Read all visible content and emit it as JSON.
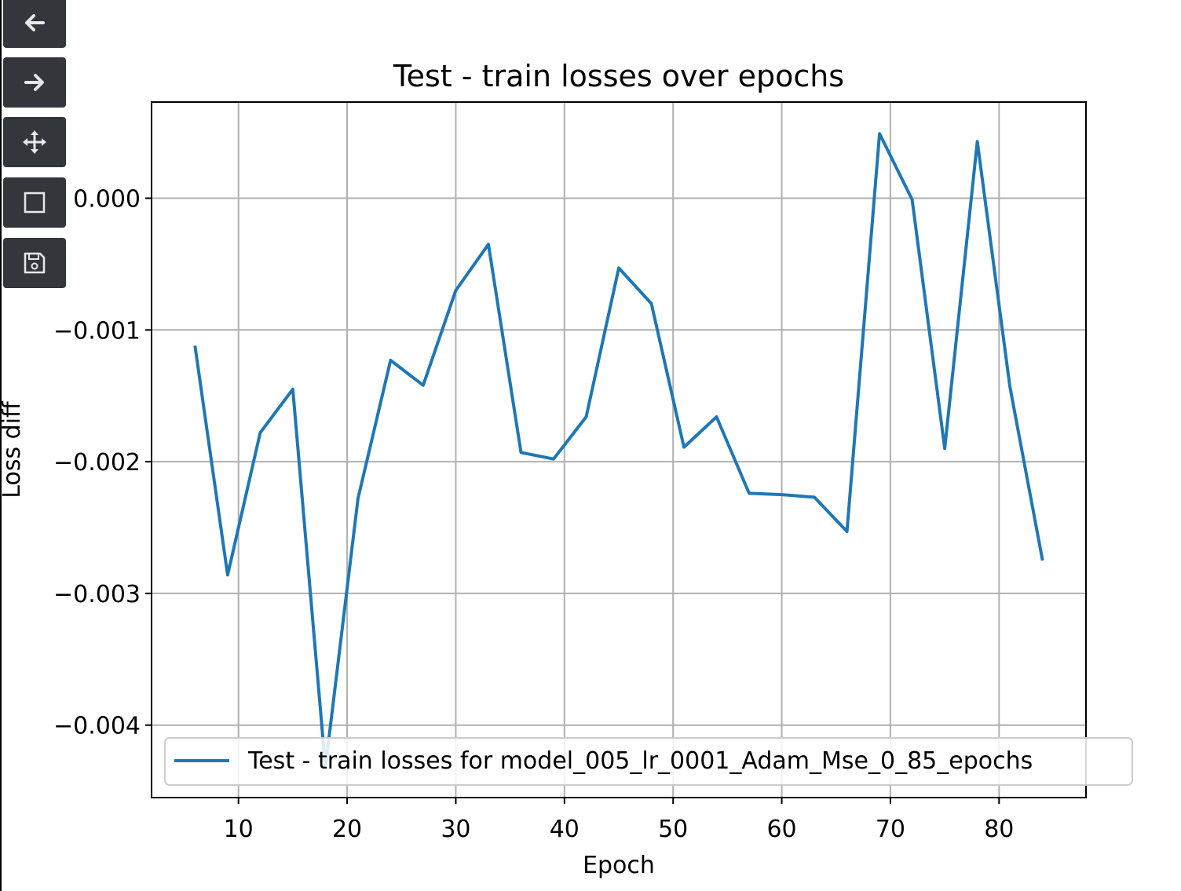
{
  "toolbar": {
    "buttons": [
      {
        "name": "back",
        "icon": "arrow-left-icon"
      },
      {
        "name": "forward",
        "icon": "arrow-right-icon"
      },
      {
        "name": "pan",
        "icon": "move-icon"
      },
      {
        "name": "zoom",
        "icon": "zoom-rect-icon"
      },
      {
        "name": "save",
        "icon": "floppy-disk-icon"
      }
    ]
  },
  "chart_data": {
    "type": "line",
    "title": "Test - train losses over epochs",
    "xlabel": "Epoch",
    "ylabel": "Loss diff",
    "xlim": [
      2,
      88
    ],
    "ylim": [
      -0.00455,
      0.00073
    ],
    "xticks": [
      10,
      20,
      30,
      40,
      50,
      60,
      70,
      80
    ],
    "xtick_labels": [
      "10",
      "20",
      "30",
      "40",
      "50",
      "60",
      "70",
      "80"
    ],
    "yticks": [
      0.0,
      -0.001,
      -0.002,
      -0.003,
      -0.004
    ],
    "ytick_labels": [
      "0.000",
      "−0.001",
      "−0.002",
      "−0.003",
      "−0.004"
    ],
    "grid": true,
    "legend_position": "lower-right",
    "series": [
      {
        "name": "Test - train losses for model_005_lr_0001_Adam_Mse_0_85_epochs",
        "color": "#1f77b4",
        "x": [
          6,
          9,
          12,
          15,
          18,
          21,
          24,
          27,
          30,
          33,
          36,
          39,
          42,
          45,
          48,
          51,
          54,
          57,
          60,
          63,
          66,
          69,
          72,
          75,
          78,
          81,
          84
        ],
        "y": [
          -0.00112,
          -0.00286,
          -0.00178,
          -0.00145,
          -0.00432,
          -0.00228,
          -0.00123,
          -0.00142,
          -0.0007,
          -0.00035,
          -0.00193,
          -0.00198,
          -0.00166,
          -0.00053,
          -0.0008,
          -0.00189,
          -0.00166,
          -0.00224,
          -0.00225,
          -0.00227,
          -0.00253,
          0.00049,
          -1e-05,
          -0.0019,
          0.00043,
          -0.00143,
          -0.00275
        ]
      }
    ]
  }
}
